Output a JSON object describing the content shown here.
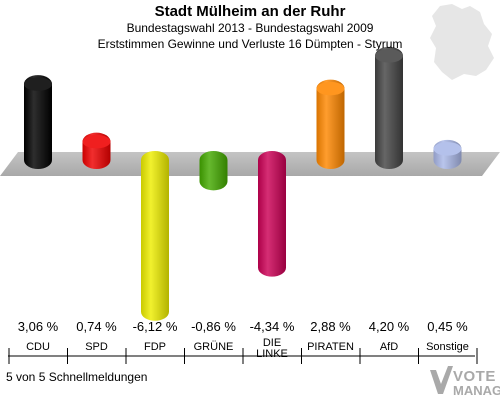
{
  "header": {
    "title": "Stadt Mülheim an der Ruhr",
    "subtitle1": "Bundestagswahl 2013 - Bundestagswahl 2009",
    "subtitle2": "Erststimmen Gewinne und Verluste 16 Dümpten - Styrum"
  },
  "footer": {
    "text": "5 von 5 Schnellmeldungen"
  },
  "brand": {
    "line1": "VOTE",
    "line2": "MANAGER"
  },
  "chart_data": {
    "type": "bar",
    "categories": [
      "CDU",
      "SPD",
      "FDP",
      "GRÜNE",
      "DIE LINKE",
      "PIRATEN",
      "AfD",
      "Sonstige"
    ],
    "category_lines": [
      [
        "CDU"
      ],
      [
        "SPD"
      ],
      [
        "FDP"
      ],
      [
        "GRÜNE"
      ],
      [
        "DIE",
        "LINKE"
      ],
      [
        "PIRATEN"
      ],
      [
        "AfD"
      ],
      [
        "Sonstige"
      ]
    ],
    "values": [
      3.06,
      0.74,
      -6.12,
      -0.86,
      -4.34,
      2.88,
      4.2,
      0.45
    ],
    "value_labels": [
      "3,06 %",
      "0,74 %",
      "-6,12 %",
      "-0,86 %",
      "-4,34 %",
      "2,88 %",
      "4,20 %",
      "0,45 %"
    ],
    "colors": [
      "#000000",
      "#ee0000",
      "#eeee00",
      "#44aa00",
      "#cc0055",
      "#ff8800",
      "#444444",
      "#aab8e8"
    ],
    "unit": "%",
    "baseline_value": 0,
    "legend": "none",
    "grid": false
  }
}
